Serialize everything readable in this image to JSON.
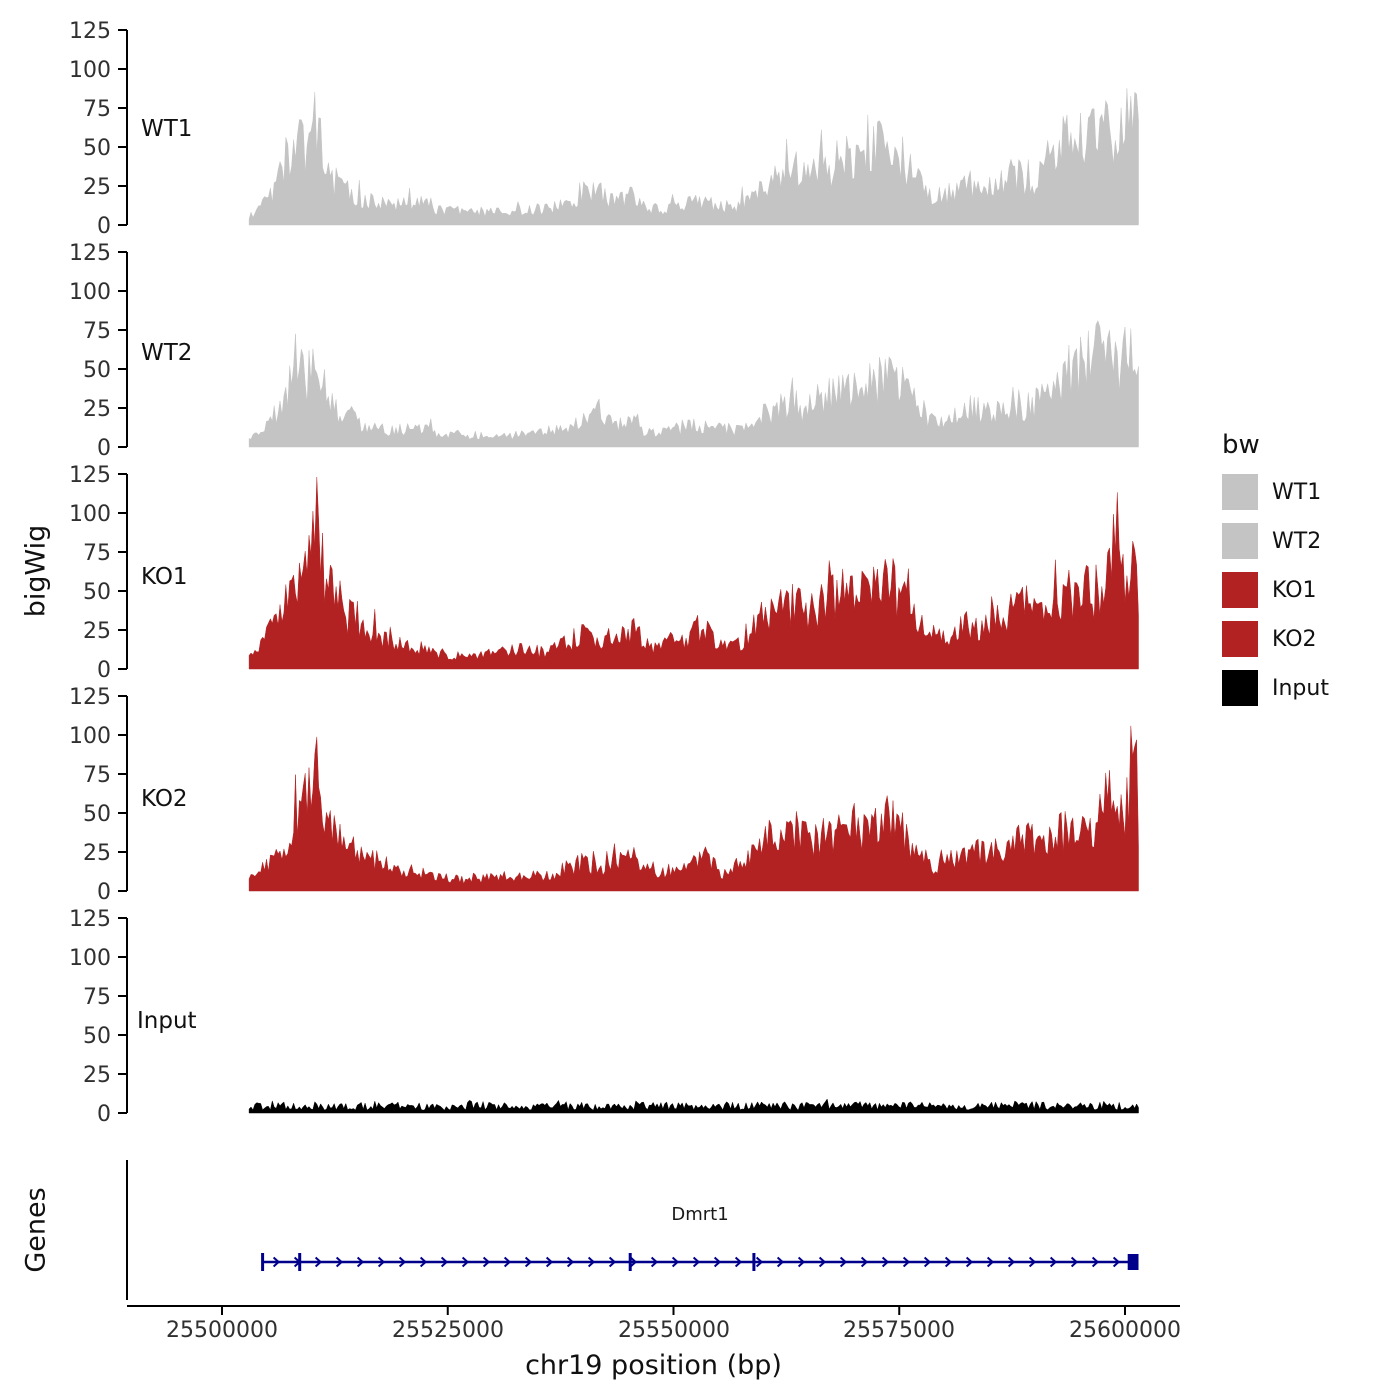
{
  "figure": {
    "y_axis_title": "bigWig",
    "genes_panel_title": "Genes",
    "x_axis_title": "chr19 position (bp)"
  },
  "legend": {
    "title": "bw",
    "items": [
      {
        "label": "WT1",
        "color": "#c4c4c4"
      },
      {
        "label": "WT2",
        "color": "#c4c4c4"
      },
      {
        "label": "KO1",
        "color": "#b22222"
      },
      {
        "label": "KO2",
        "color": "#b22222"
      },
      {
        "label": "Input",
        "color": "#000000"
      }
    ]
  },
  "chart_data": {
    "type": "area",
    "xlabel": "chr19 position (bp)",
    "ylabel": "bigWig",
    "x_ticks": [
      25500000,
      25525000,
      25550000,
      25575000,
      25600000
    ],
    "y_ticks": [
      0,
      25,
      50,
      75,
      100,
      125
    ],
    "ylim": [
      0,
      125
    ],
    "x_axis_range_bp": [
      25488000,
      25606000
    ],
    "data_range_bp": [
      25503000,
      25601500
    ],
    "tracks": [
      {
        "name": "WT1",
        "color": "#c4c4c4",
        "roughness": 0.38,
        "profile": [
          [
            25503000,
            6
          ],
          [
            25504500,
            12
          ],
          [
            25506000,
            26
          ],
          [
            25507500,
            48
          ],
          [
            25508600,
            62
          ],
          [
            25509400,
            50
          ],
          [
            25510200,
            66
          ],
          [
            25511200,
            46
          ],
          [
            25512200,
            30
          ],
          [
            25513600,
            22
          ],
          [
            25515000,
            18
          ],
          [
            25517000,
            14
          ],
          [
            25519000,
            12
          ],
          [
            25521500,
            15
          ],
          [
            25524000,
            10
          ],
          [
            25527000,
            9
          ],
          [
            25530000,
            8
          ],
          [
            25533000,
            9
          ],
          [
            25536000,
            11
          ],
          [
            25538500,
            13
          ],
          [
            25540500,
            20
          ],
          [
            25542000,
            24
          ],
          [
            25543500,
            13
          ],
          [
            25545000,
            20
          ],
          [
            25546500,
            12
          ],
          [
            25548500,
            10
          ],
          [
            25550500,
            12
          ],
          [
            25552500,
            15
          ],
          [
            25554500,
            13
          ],
          [
            25556500,
            12
          ],
          [
            25558500,
            16
          ],
          [
            25560500,
            26
          ],
          [
            25562500,
            34
          ],
          [
            25564500,
            28
          ],
          [
            25566500,
            35
          ],
          [
            25568500,
            43
          ],
          [
            25570500,
            38
          ],
          [
            25572500,
            48
          ],
          [
            25574200,
            52
          ],
          [
            25575800,
            38
          ],
          [
            25577500,
            24
          ],
          [
            25579500,
            18
          ],
          [
            25581500,
            22
          ],
          [
            25583500,
            27
          ],
          [
            25585500,
            25
          ],
          [
            25587500,
            32
          ],
          [
            25589500,
            28
          ],
          [
            25591500,
            40
          ],
          [
            25593500,
            55
          ],
          [
            25595500,
            62
          ],
          [
            25597500,
            68
          ],
          [
            25599000,
            60
          ],
          [
            25600300,
            72
          ],
          [
            25601100,
            82
          ],
          [
            25601500,
            68
          ]
        ]
      },
      {
        "name": "WT2",
        "color": "#c4c4c4",
        "roughness": 0.38,
        "profile": [
          [
            25503000,
            5
          ],
          [
            25504500,
            10
          ],
          [
            25506000,
            22
          ],
          [
            25507500,
            40
          ],
          [
            25508600,
            52
          ],
          [
            25509400,
            43
          ],
          [
            25510200,
            56
          ],
          [
            25511200,
            39
          ],
          [
            25512200,
            26
          ],
          [
            25513600,
            20
          ],
          [
            25515000,
            16
          ],
          [
            25517000,
            12
          ],
          [
            25519000,
            10
          ],
          [
            25521500,
            13
          ],
          [
            25524000,
            9
          ],
          [
            25527000,
            8
          ],
          [
            25530000,
            7
          ],
          [
            25533000,
            8
          ],
          [
            25536000,
            10
          ],
          [
            25538500,
            12
          ],
          [
            25540500,
            17
          ],
          [
            25542000,
            26
          ],
          [
            25543500,
            12
          ],
          [
            25545000,
            18
          ],
          [
            25546500,
            11
          ],
          [
            25548500,
            9
          ],
          [
            25550500,
            11
          ],
          [
            25552500,
            14
          ],
          [
            25554500,
            12
          ],
          [
            25556500,
            11
          ],
          [
            25558500,
            15
          ],
          [
            25560500,
            22
          ],
          [
            25562500,
            29
          ],
          [
            25564500,
            25
          ],
          [
            25566500,
            30
          ],
          [
            25568500,
            37
          ],
          [
            25570500,
            34
          ],
          [
            25572500,
            42
          ],
          [
            25574200,
            46
          ],
          [
            25575800,
            34
          ],
          [
            25577500,
            21
          ],
          [
            25579500,
            16
          ],
          [
            25581500,
            20
          ],
          [
            25583500,
            24
          ],
          [
            25585500,
            22
          ],
          [
            25587500,
            28
          ],
          [
            25589500,
            25
          ],
          [
            25591500,
            35
          ],
          [
            25593500,
            48
          ],
          [
            25595500,
            55
          ],
          [
            25597500,
            60
          ],
          [
            25599000,
            52
          ],
          [
            25600300,
            63
          ],
          [
            25601100,
            72
          ],
          [
            25601500,
            58
          ]
        ]
      },
      {
        "name": "KO1",
        "color": "#b22222",
        "roughness": 0.38,
        "profile": [
          [
            25503000,
            8
          ],
          [
            25504500,
            18
          ],
          [
            25506000,
            30
          ],
          [
            25507500,
            44
          ],
          [
            25508800,
            62
          ],
          [
            25509800,
            78
          ],
          [
            25510300,
            115
          ],
          [
            25510900,
            72
          ],
          [
            25511700,
            52
          ],
          [
            25512700,
            44
          ],
          [
            25514000,
            34
          ],
          [
            25515500,
            28
          ],
          [
            25517500,
            22
          ],
          [
            25519500,
            16
          ],
          [
            25521500,
            13
          ],
          [
            25524000,
            10
          ],
          [
            25527000,
            8
          ],
          [
            25530000,
            10
          ],
          [
            25533000,
            12
          ],
          [
            25536000,
            11
          ],
          [
            25538000,
            16
          ],
          [
            25540000,
            22
          ],
          [
            25542000,
            18
          ],
          [
            25544000,
            22
          ],
          [
            25545500,
            25
          ],
          [
            25547500,
            14
          ],
          [
            25549500,
            16
          ],
          [
            25551500,
            22
          ],
          [
            25553500,
            26
          ],
          [
            25555500,
            15
          ],
          [
            25557500,
            18
          ],
          [
            25559500,
            32
          ],
          [
            25561500,
            44
          ],
          [
            25563500,
            40
          ],
          [
            25565500,
            37
          ],
          [
            25567500,
            44
          ],
          [
            25569500,
            50
          ],
          [
            25571500,
            45
          ],
          [
            25573500,
            54
          ],
          [
            25575200,
            50
          ],
          [
            25577000,
            28
          ],
          [
            25579000,
            18
          ],
          [
            25581000,
            24
          ],
          [
            25583000,
            30
          ],
          [
            25585000,
            27
          ],
          [
            25587000,
            34
          ],
          [
            25589000,
            40
          ],
          [
            25591000,
            34
          ],
          [
            25593000,
            44
          ],
          [
            25595000,
            50
          ],
          [
            25597000,
            45
          ],
          [
            25598600,
            62
          ],
          [
            25599400,
            95
          ],
          [
            25600200,
            60
          ],
          [
            25601000,
            68
          ],
          [
            25601500,
            50
          ]
        ]
      },
      {
        "name": "KO2",
        "color": "#b22222",
        "roughness": 0.38,
        "profile": [
          [
            25503000,
            7
          ],
          [
            25504500,
            15
          ],
          [
            25506000,
            26
          ],
          [
            25507500,
            38
          ],
          [
            25508800,
            52
          ],
          [
            25509800,
            62
          ],
          [
            25510300,
            88
          ],
          [
            25510900,
            58
          ],
          [
            25511700,
            44
          ],
          [
            25512700,
            36
          ],
          [
            25514000,
            28
          ],
          [
            25515500,
            23
          ],
          [
            25517500,
            18
          ],
          [
            25519500,
            14
          ],
          [
            25521500,
            12
          ],
          [
            25524000,
            9
          ],
          [
            25527000,
            7
          ],
          [
            25530000,
            9
          ],
          [
            25533000,
            10
          ],
          [
            25536000,
            10
          ],
          [
            25538000,
            14
          ],
          [
            25540000,
            18
          ],
          [
            25542000,
            15
          ],
          [
            25544000,
            18
          ],
          [
            25545500,
            22
          ],
          [
            25547500,
            12
          ],
          [
            25549500,
            14
          ],
          [
            25551500,
            18
          ],
          [
            25553500,
            21
          ],
          [
            25555500,
            12
          ],
          [
            25557500,
            15
          ],
          [
            25559500,
            27
          ],
          [
            25561500,
            38
          ],
          [
            25563500,
            34
          ],
          [
            25565500,
            31
          ],
          [
            25567500,
            37
          ],
          [
            25569500,
            42
          ],
          [
            25571500,
            38
          ],
          [
            25573500,
            46
          ],
          [
            25575200,
            43
          ],
          [
            25577000,
            24
          ],
          [
            25579000,
            15
          ],
          [
            25581000,
            20
          ],
          [
            25583000,
            25
          ],
          [
            25585000,
            23
          ],
          [
            25587000,
            28
          ],
          [
            25589000,
            34
          ],
          [
            25591000,
            29
          ],
          [
            25593000,
            38
          ],
          [
            25595000,
            43
          ],
          [
            25597000,
            40
          ],
          [
            25598200,
            72
          ],
          [
            25599000,
            52
          ],
          [
            25600300,
            58
          ],
          [
            25601200,
            74
          ],
          [
            25601500,
            46
          ]
        ]
      },
      {
        "name": "Input",
        "color": "#000000",
        "roughness": 0.6,
        "profile": [
          [
            25503000,
            4
          ],
          [
            25508000,
            5
          ],
          [
            25513000,
            4
          ],
          [
            25518000,
            5
          ],
          [
            25523000,
            4
          ],
          [
            25528000,
            5
          ],
          [
            25533000,
            4
          ],
          [
            25538000,
            5
          ],
          [
            25543000,
            4
          ],
          [
            25548000,
            5
          ],
          [
            25553000,
            4
          ],
          [
            25558000,
            5
          ],
          [
            25563000,
            4
          ],
          [
            25568000,
            5
          ],
          [
            25573000,
            4
          ],
          [
            25578000,
            5
          ],
          [
            25583000,
            4
          ],
          [
            25588000,
            5
          ],
          [
            25593000,
            4
          ],
          [
            25598000,
            5
          ],
          [
            25601500,
            4
          ]
        ]
      }
    ],
    "gene_track": {
      "panel_label": "Genes",
      "gene": {
        "name": "Dmrt1",
        "color": "#00008b",
        "strand": "+",
        "start_bp": 25504500,
        "end_bp": 25601500,
        "exon_marks_bp": [
          25504500,
          25508600,
          25545200,
          25558900
        ],
        "terminal_exon_bp": [
          25600300,
          25601500
        ]
      }
    }
  }
}
